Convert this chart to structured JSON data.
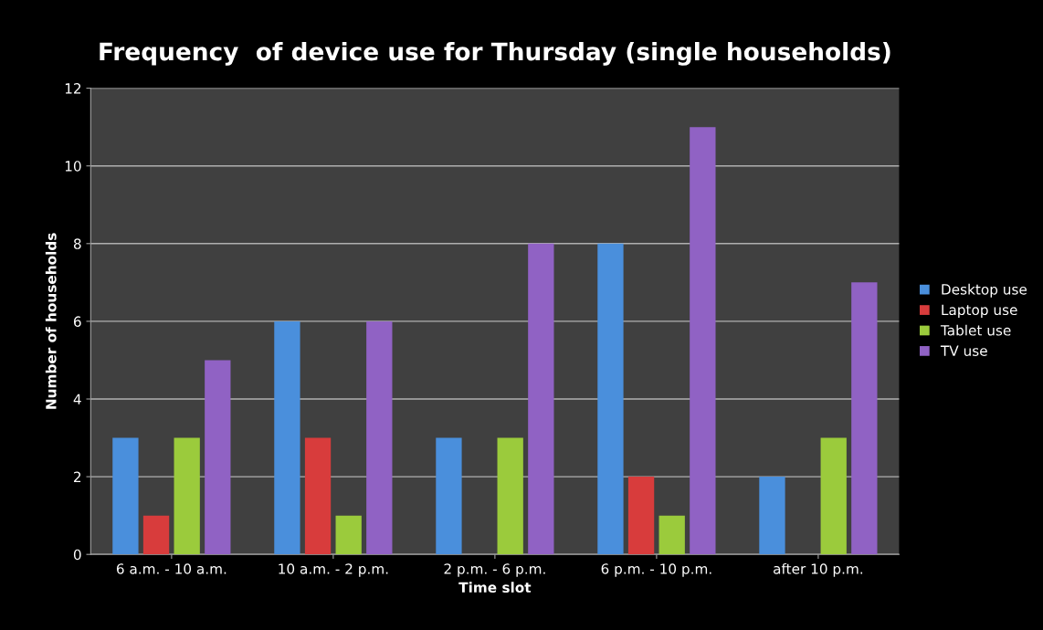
{
  "chart_data": {
    "type": "bar",
    "title": "Frequency  of device use for Thursday (single households)",
    "xlabel": "Time slot",
    "ylabel": "Number of households",
    "categories": [
      "6 a.m. - 10 a.m.",
      "10 a.m. - 2 p.m.",
      "2 p.m. - 6 p.m.",
      "6 p.m. - 10 p.m.",
      "after 10 p.m."
    ],
    "series": [
      {
        "name": "Desktop use",
        "color": "#4a8fdc",
        "values": [
          3,
          6,
          3,
          8,
          2
        ]
      },
      {
        "name": "Laptop use",
        "color": "#d83c3c",
        "values": [
          1,
          3,
          0,
          2,
          0
        ]
      },
      {
        "name": "Tablet use",
        "color": "#9bcb3c",
        "values": [
          3,
          1,
          3,
          1,
          3
        ]
      },
      {
        "name": "TV use",
        "color": "#9062c4",
        "values": [
          5,
          6,
          8,
          11,
          7
        ]
      }
    ],
    "ylim": [
      0,
      12
    ],
    "yticks": [
      0,
      2,
      4,
      6,
      8,
      10,
      12
    ],
    "grid": "y",
    "legend": "right"
  }
}
